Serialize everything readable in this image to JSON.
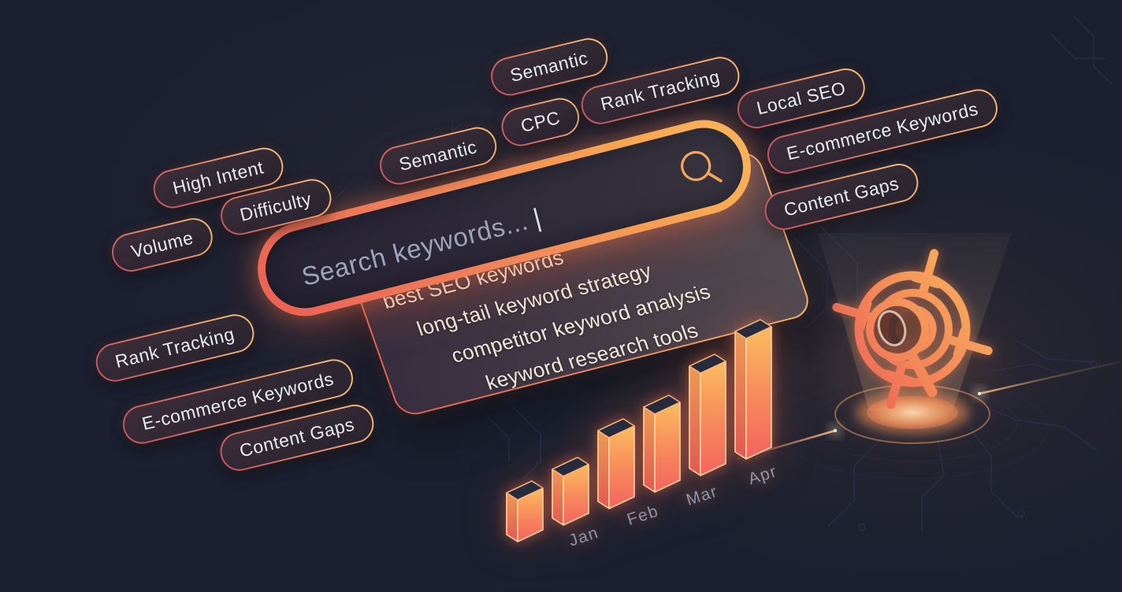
{
  "tags": [
    {
      "id": "volume",
      "label": "Volume"
    },
    {
      "id": "high-intent",
      "label": "High Intent"
    },
    {
      "id": "difficulty",
      "label": "Difficulty"
    },
    {
      "id": "semantic-mid",
      "label": "Semantic"
    },
    {
      "id": "semantic-top",
      "label": "Semantic"
    },
    {
      "id": "cpc",
      "label": "CPC"
    },
    {
      "id": "rank-tracking-top",
      "label": "Rank Tracking"
    },
    {
      "id": "local-seo",
      "label": "Local SEO"
    },
    {
      "id": "ecommerce-keywords-right",
      "label": "E-commerce Keywords"
    },
    {
      "id": "content-gaps-right",
      "label": "Content Gaps"
    },
    {
      "id": "rank-tracking-left",
      "label": "Rank Tracking"
    },
    {
      "id": "ecommerce-keywords-left",
      "label": "E-commerce Keywords"
    },
    {
      "id": "content-gaps-left",
      "label": "Content Gaps"
    }
  ],
  "search": {
    "placeholder": "Search keywords...",
    "cursor": "|",
    "icon": "magnifier-icon"
  },
  "suggestions": [
    "best SEO keywords",
    "long-tail keyword strategy",
    "competitor keyword analysis",
    "keyword research tools"
  ],
  "chart_data": {
    "type": "bar",
    "title": "",
    "categories": [
      "Jan",
      "Feb",
      "Mar",
      "Apr"
    ],
    "values": [
      53,
      62,
      90,
      99,
      130,
      153
    ],
    "bars_count": 6,
    "value_scale": "relative bar height (px), no axis shown",
    "label_alignment": "month labels shown under the last four bars",
    "trend": "increasing",
    "grid": false,
    "legend": false
  },
  "hologram": {
    "icon": "target-magnifier-icon"
  },
  "colors": {
    "background": "#1b1f2f",
    "accent_orange": "#f6a84e",
    "accent_coral": "#ee5f52",
    "pill_text": "#e9ecf4",
    "placeholder_text": "#9da4ba",
    "suggestion_text": "#f3ecdc",
    "chart_label_text": "#8e95aa",
    "circuit_trace": "#2c3251"
  }
}
